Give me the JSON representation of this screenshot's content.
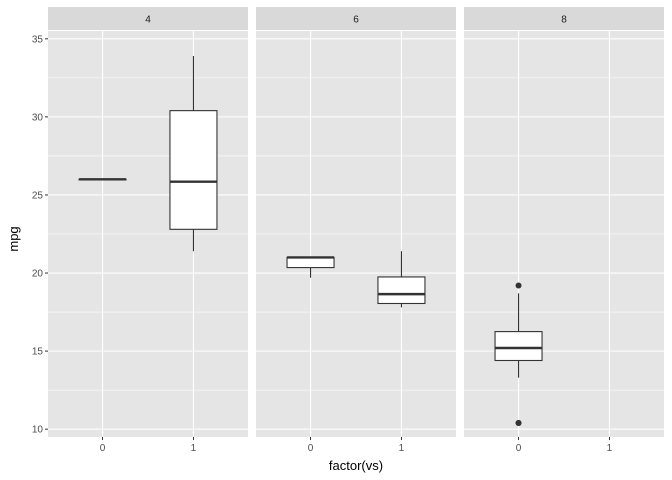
{
  "chart_data": {
    "type": "boxplot",
    "facet_variable": "cyl",
    "xlabel": "factor(vs)",
    "ylabel": "mpg",
    "x_categories": [
      "0",
      "1"
    ],
    "ylim": [
      9.5,
      35.5
    ],
    "y_ticks": [
      10,
      15,
      20,
      25,
      30,
      35
    ],
    "grid": true,
    "colors": {
      "panel_background": "#e5e5e5",
      "strip_background": "#d9d9d9",
      "grid_major": "#ffffff",
      "box_fill": "#ffffff",
      "box_stroke": "#333333"
    },
    "facets": [
      {
        "label": "4",
        "boxes": [
          {
            "x": "0",
            "min": 26.0,
            "q1": 26.0,
            "median": 26.0,
            "q3": 26.0,
            "max": 26.0,
            "outliers": []
          },
          {
            "x": "1",
            "min": 21.4,
            "q1": 22.8,
            "median": 25.85,
            "q3": 30.4,
            "max": 33.9,
            "outliers": []
          }
        ]
      },
      {
        "label": "6",
        "boxes": [
          {
            "x": "0",
            "min": 19.7,
            "q1": 20.35,
            "median": 21.0,
            "q3": 21.0,
            "max": 21.0,
            "outliers": []
          },
          {
            "x": "1",
            "min": 17.8,
            "q1": 18.05,
            "median": 18.65,
            "q3": 19.75,
            "max": 21.4,
            "outliers": []
          }
        ]
      },
      {
        "label": "8",
        "boxes": [
          {
            "x": "0",
            "min": 13.3,
            "q1": 14.4,
            "median": 15.2,
            "q3": 16.25,
            "max": 18.7,
            "outliers": [
              10.4,
              10.4,
              19.2
            ]
          }
        ]
      }
    ]
  }
}
